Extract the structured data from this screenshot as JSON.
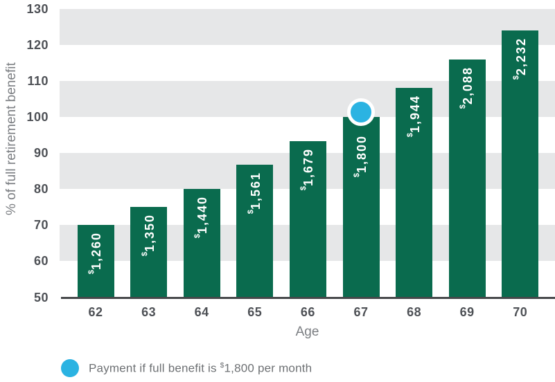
{
  "colors": {
    "bar": "#0a6b4e",
    "band": "#e6e7e8",
    "marker_fill": "#2bb3e2",
    "marker_ring": "#ffffff",
    "axis_tick_text": "#4e5156",
    "axis_title_text": "#7b7e82",
    "legend_text": "#6d7073",
    "baseline": "#46484a",
    "bar_label_text": "#ffffff"
  },
  "chart_data": {
    "type": "bar",
    "title": "",
    "xlabel": "Age",
    "ylabel": "% of full retirement benefit",
    "categories": [
      "62",
      "63",
      "64",
      "65",
      "66",
      "67",
      "68",
      "69",
      "70"
    ],
    "values": [
      70,
      75,
      80,
      86.7,
      93.3,
      100,
      108,
      116,
      124
    ],
    "bar_labels": [
      "$1,260",
      "$1,350",
      "$1,440",
      "$1,561",
      "$1,679",
      "$1,800",
      "$1,944",
      "$2,088",
      "$2,232"
    ],
    "ylim": [
      50,
      130
    ],
    "yticks": [
      130,
      120,
      110,
      100,
      90,
      80,
      70,
      60,
      50
    ],
    "gray_bands": [
      [
        120,
        130
      ],
      [
        100,
        110
      ],
      [
        80,
        90
      ],
      [
        60,
        70
      ]
    ],
    "grid": false,
    "legend_position": "bottom-left",
    "marker": {
      "category": "67",
      "value": 100,
      "shape": "circle"
    }
  },
  "legend": {
    "marker_icon": "circle",
    "text": "Payment if full benefit is $1,800 per month"
  }
}
